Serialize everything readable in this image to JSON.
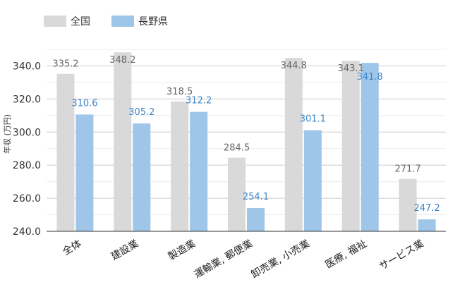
{
  "chart_data": {
    "type": "bar",
    "title": "",
    "xlabel": "",
    "ylabel": "年収 (万円)",
    "ylim": [
      240,
      350
    ],
    "y_ticks": [
      "240.0",
      "260.0",
      "280.0",
      "300.0",
      "320.0",
      "340.0"
    ],
    "grid": true,
    "legend_position": "top-left",
    "categories": [
      "全体",
      "建設業",
      "製造業",
      "運輸業, 郵便業",
      "卸売業, 小売業",
      "医療, 福祉",
      "サービス業"
    ],
    "series": [
      {
        "name": "全国",
        "color": "#d9d9d9",
        "label_color": "#666666",
        "values": [
          335.2,
          348.2,
          318.5,
          284.5,
          344.8,
          343.1,
          271.7
        ],
        "labels": [
          "335.2",
          "348.2",
          "318.5",
          "284.5",
          "344.8",
          "343.1",
          "271.7"
        ]
      },
      {
        "name": "長野県",
        "color": "#9fc5e8",
        "label_color": "#3d85c6",
        "values": [
          310.6,
          305.2,
          312.2,
          254.1,
          301.1,
          341.8,
          247.2
        ],
        "labels": [
          "310.6",
          "305.2",
          "312.2",
          "254.1",
          "301.1",
          "341.8",
          "247.2"
        ]
      }
    ]
  }
}
